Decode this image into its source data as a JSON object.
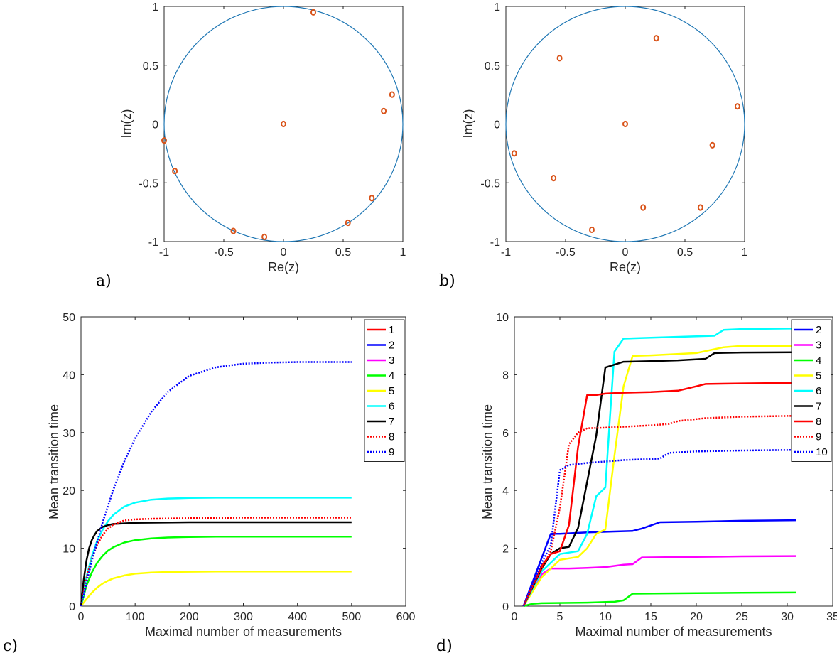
{
  "colors": {
    "circle": "#1f77b4",
    "marker": "#d95319",
    "axis": "#262626"
  },
  "chart_data": [
    {
      "panel_label": "a)",
      "type": "scatter",
      "xlabel": "Re(z)",
      "ylabel": "Im(z)",
      "xlim": [
        -1,
        1
      ],
      "ylim": [
        -1,
        1
      ],
      "xticks": [
        "-1",
        "-0.5",
        "0",
        "0.5",
        "1"
      ],
      "yticks": [
        "-1",
        "-0.5",
        "0",
        "0.5",
        "1"
      ],
      "unit_circle": true,
      "points": [
        [
          0.25,
          0.95
        ],
        [
          0.91,
          0.25
        ],
        [
          0.84,
          0.11
        ],
        [
          0.0,
          0.0
        ],
        [
          -1.0,
          -0.14
        ],
        [
          -0.91,
          -0.4
        ],
        [
          0.74,
          -0.63
        ],
        [
          0.54,
          -0.84
        ],
        [
          -0.42,
          -0.91
        ],
        [
          -0.16,
          -0.96
        ]
      ]
    },
    {
      "panel_label": "b)",
      "type": "scatter",
      "xlabel": "Re(z)",
      "ylabel": "Im(z)",
      "xlim": [
        -1,
        1
      ],
      "ylim": [
        -1,
        1
      ],
      "xticks": [
        "-1",
        "-0.5",
        "0",
        "0.5",
        "1"
      ],
      "yticks": [
        "-1",
        "-0.5",
        "0",
        "0.5",
        "1"
      ],
      "unit_circle": true,
      "points": [
        [
          0.26,
          0.73
        ],
        [
          -0.55,
          0.56
        ],
        [
          0.94,
          0.15
        ],
        [
          0.0,
          0.0
        ],
        [
          0.73,
          -0.18
        ],
        [
          -0.93,
          -0.25
        ],
        [
          -0.6,
          -0.46
        ],
        [
          0.15,
          -0.71
        ],
        [
          0.63,
          -0.71
        ],
        [
          -0.28,
          -0.9
        ]
      ]
    },
    {
      "panel_label": "c)",
      "type": "line",
      "xlabel": "Maximal number of measurements",
      "ylabel": "Mean transition time",
      "xlim": [
        0,
        600
      ],
      "ylim": [
        0,
        50
      ],
      "xticks": [
        "0",
        "100",
        "200",
        "300",
        "400",
        "500",
        "600"
      ],
      "yticks": [
        "0",
        "10",
        "20",
        "30",
        "40",
        "50"
      ],
      "legend_position": "top-right",
      "series": [
        {
          "name": "1",
          "color": "#ff0000",
          "dash": false,
          "x": [],
          "y": []
        },
        {
          "name": "2",
          "color": "#0000ff",
          "dash": false,
          "x": [],
          "y": []
        },
        {
          "name": "3",
          "color": "#ff00ff",
          "dash": false,
          "x": [],
          "y": []
        },
        {
          "name": "4",
          "color": "#00ff00",
          "dash": false,
          "x": [
            0,
            10,
            20,
            30,
            40,
            50,
            60,
            80,
            100,
            130,
            160,
            200,
            250,
            300,
            400,
            500
          ],
          "y": [
            0,
            3.5,
            5.8,
            7.5,
            8.7,
            9.6,
            10.2,
            11.0,
            11.4,
            11.7,
            11.85,
            11.95,
            12.0,
            12.0,
            12.0,
            12.0
          ]
        },
        {
          "name": "5",
          "color": "#ffff00",
          "dash": false,
          "x": [
            0,
            10,
            20,
            30,
            40,
            50,
            60,
            80,
            100,
            130,
            160,
            200,
            250,
            300,
            400,
            500
          ],
          "y": [
            0,
            1.2,
            2.3,
            3.2,
            3.9,
            4.4,
            4.8,
            5.3,
            5.6,
            5.8,
            5.9,
            5.95,
            6.0,
            6.0,
            6.0,
            6.0
          ]
        },
        {
          "name": "6",
          "color": "#00ffff",
          "dash": false,
          "x": [
            0,
            10,
            20,
            30,
            40,
            50,
            60,
            80,
            100,
            130,
            160,
            200,
            250,
            300,
            400,
            500
          ],
          "y": [
            0,
            5,
            8.6,
            11.3,
            13.2,
            14.7,
            15.8,
            17.2,
            17.9,
            18.4,
            18.6,
            18.7,
            18.75,
            18.75,
            18.75,
            18.75
          ]
        },
        {
          "name": "7",
          "color": "#000000",
          "dash": false,
          "x": [
            0,
            5,
            10,
            15,
            20,
            25,
            30,
            40,
            50,
            60,
            80,
            100,
            150,
            200,
            300,
            500
          ],
          "y": [
            0,
            4.5,
            7.8,
            10.0,
            11.4,
            12.3,
            13.0,
            13.7,
            14.0,
            14.2,
            14.3,
            14.4,
            14.45,
            14.5,
            14.5,
            14.5
          ]
        },
        {
          "name": "8",
          "color": "#ff0000",
          "dash": true,
          "x": [
            0,
            10,
            20,
            30,
            40,
            50,
            60,
            80,
            100,
            130,
            160,
            200,
            250,
            300,
            400,
            500
          ],
          "y": [
            0,
            4.8,
            8.2,
            10.6,
            12.3,
            13.4,
            14.1,
            14.8,
            15.0,
            15.1,
            15.15,
            15.2,
            15.25,
            15.3,
            15.3,
            15.3
          ]
        },
        {
          "name": "9",
          "color": "#0000ff",
          "dash": true,
          "x": [
            0,
            20,
            40,
            60,
            80,
            100,
            130,
            160,
            200,
            250,
            300,
            350,
            400,
            450,
            500
          ],
          "y": [
            0,
            7.8,
            14.5,
            20.2,
            25.0,
            29.0,
            33.6,
            37.0,
            39.8,
            41.3,
            41.9,
            42.1,
            42.2,
            42.2,
            42.2
          ]
        }
      ]
    },
    {
      "panel_label": "d)",
      "type": "line",
      "xlabel": "Maximal number of measurements",
      "ylabel": "Mean transition time",
      "xlim": [
        0,
        35
      ],
      "ylim": [
        0,
        10
      ],
      "xticks": [
        "0",
        "5",
        "10",
        "15",
        "20",
        "25",
        "30",
        "35"
      ],
      "yticks": [
        "0",
        "2",
        "4",
        "6",
        "8",
        "10"
      ],
      "legend_position": "top-right",
      "series": [
        {
          "name": "2",
          "color": "#0000ff",
          "dash": false,
          "x": [
            1,
            4,
            5,
            8,
            11,
            13,
            14,
            16,
            20,
            25,
            31
          ],
          "y": [
            0,
            2.5,
            2.5,
            2.55,
            2.58,
            2.6,
            2.68,
            2.9,
            2.92,
            2.95,
            2.97
          ]
        },
        {
          "name": "3",
          "color": "#ff00ff",
          "dash": false,
          "x": [
            1,
            3,
            4,
            6,
            8,
            10,
            12,
            13,
            14,
            20,
            25,
            31
          ],
          "y": [
            0,
            1.1,
            1.3,
            1.3,
            1.32,
            1.35,
            1.43,
            1.45,
            1.68,
            1.7,
            1.72,
            1.73
          ]
        },
        {
          "name": "4",
          "color": "#00ff00",
          "dash": false,
          "x": [
            1,
            2,
            3,
            8,
            11,
            12,
            13,
            20,
            25,
            31
          ],
          "y": [
            0,
            0.08,
            0.1,
            0.12,
            0.15,
            0.2,
            0.43,
            0.45,
            0.46,
            0.47
          ]
        },
        {
          "name": "5",
          "color": "#ffff00",
          "dash": false,
          "x": [
            1,
            3,
            5,
            7,
            8,
            9,
            10,
            11,
            12,
            13,
            15,
            20,
            23,
            25,
            31
          ],
          "y": [
            0,
            1.0,
            1.6,
            1.7,
            2.0,
            2.5,
            2.65,
            5.2,
            7.6,
            8.65,
            8.67,
            8.75,
            8.95,
            9.0,
            9.0
          ]
        },
        {
          "name": "6",
          "color": "#00ffff",
          "dash": false,
          "x": [
            1,
            3,
            5,
            7,
            8,
            9,
            10,
            10.5,
            11,
            12,
            15,
            20,
            22,
            23,
            25,
            31
          ],
          "y": [
            0,
            1.2,
            1.8,
            1.9,
            2.5,
            3.8,
            4.1,
            6.5,
            8.8,
            9.25,
            9.28,
            9.33,
            9.35,
            9.55,
            9.58,
            9.6
          ]
        },
        {
          "name": "7",
          "color": "#000000",
          "dash": false,
          "x": [
            1,
            3,
            4,
            5,
            6,
            7,
            8,
            9,
            10,
            12,
            15,
            18,
            21,
            22,
            25,
            31
          ],
          "y": [
            0,
            1.3,
            1.8,
            2.0,
            2.05,
            2.7,
            4.3,
            5.9,
            8.25,
            8.45,
            8.47,
            8.5,
            8.55,
            8.75,
            8.77,
            8.78
          ]
        },
        {
          "name": "8",
          "color": "#ff0000",
          "dash": false,
          "x": [
            1,
            3,
            4,
            5,
            6,
            7,
            8,
            9,
            10,
            12,
            15,
            18,
            20,
            21,
            25,
            31
          ],
          "y": [
            0,
            1.4,
            1.8,
            1.9,
            2.8,
            5.5,
            7.3,
            7.3,
            7.35,
            7.38,
            7.4,
            7.45,
            7.6,
            7.68,
            7.7,
            7.72
          ]
        },
        {
          "name": "9",
          "color": "#ff0000",
          "dash": true,
          "x": [
            1,
            3,
            4,
            5,
            6,
            7,
            8,
            10,
            15,
            17,
            18,
            21,
            25,
            31
          ],
          "y": [
            0,
            1.3,
            1.9,
            3.4,
            5.6,
            6.0,
            6.15,
            6.17,
            6.25,
            6.3,
            6.4,
            6.5,
            6.55,
            6.58
          ]
        },
        {
          "name": "10",
          "color": "#0000ff",
          "dash": true,
          "x": [
            1,
            3,
            4,
            5,
            6,
            8,
            10,
            12,
            16,
            17,
            20,
            25,
            31
          ],
          "y": [
            0,
            1.5,
            2.1,
            4.7,
            4.88,
            4.95,
            5.0,
            5.05,
            5.1,
            5.3,
            5.35,
            5.38,
            5.4
          ]
        }
      ]
    }
  ]
}
